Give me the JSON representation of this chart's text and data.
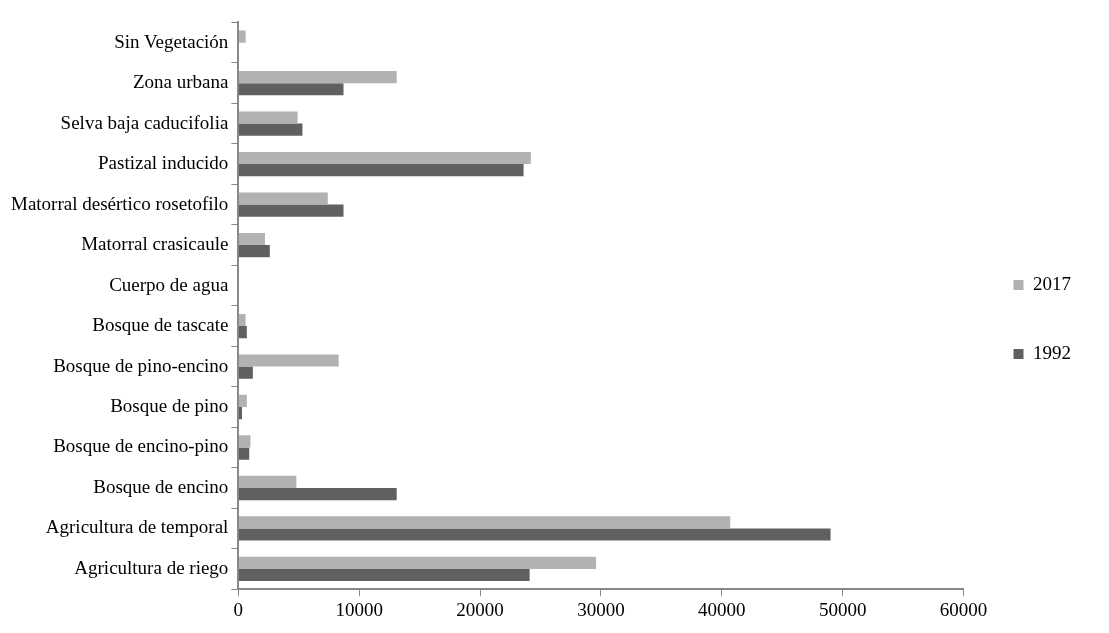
{
  "chart_data": {
    "type": "bar",
    "orientation": "horizontal",
    "categories": [
      "Sin Vegetación",
      "Zona urbana",
      "Selva baja caducifolia",
      "Pastizal inducido",
      "Matorral desértico rosetofilo",
      "Matorral crasicaule",
      "Cuerpo de agua",
      "Bosque de tascate",
      "Bosque de pino-encino",
      "Bosque de pino",
      "Bosque de encino-pino",
      "Bosque de encino",
      "Agricultura de temporal",
      "Agricultura de riego"
    ],
    "series": [
      {
        "name": "2017",
        "color": "#b2b2b2",
        "values": [
          600,
          13100,
          4900,
          24200,
          7400,
          2200,
          null,
          600,
          8300,
          700,
          1000,
          4800,
          40700,
          29600
        ]
      },
      {
        "name": "1992",
        "color": "#606060",
        "values": [
          0,
          8700,
          5300,
          23600,
          8700,
          2600,
          null,
          700,
          1200,
          300,
          900,
          13100,
          49000,
          24100
        ]
      }
    ],
    "xlim": [
      0,
      60000
    ],
    "xticks": [
      0,
      10000,
      20000,
      30000,
      40000,
      50000,
      60000
    ],
    "grid": false,
    "legend": "right"
  }
}
